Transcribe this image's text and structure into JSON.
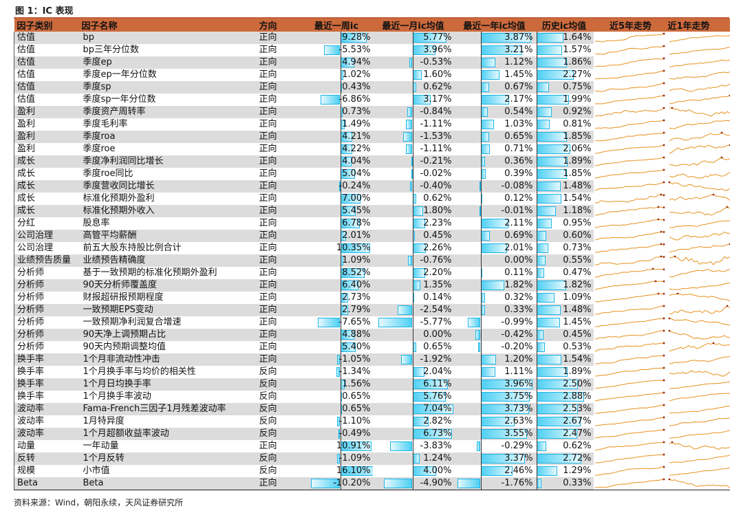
{
  "figure_title": "图 1：IC 表现",
  "source": "资料来源：Wind，朝阳永续，天风证券研究所",
  "chart_data": {
    "type": "table",
    "columns": [
      "因子类别",
      "因子名称",
      "方向",
      "最近一周ic",
      "最近一月ic均值",
      "最近一年ic均值",
      "历史ic均值",
      "近5年走势",
      "近1年走势"
    ],
    "rows": [
      {
        "category": "估值",
        "name": "bp",
        "direction": "正向",
        "ic_week": "9.28%",
        "ic_month": "5.77%",
        "ic_year": "3.87%",
        "ic_hist": "1.64%",
        "w": 9.28,
        "m": 5.77,
        "y": 3.87,
        "h": 1.64
      },
      {
        "category": "估值",
        "name": "bp三年分位数",
        "direction": "正向",
        "ic_week": "-5.53%",
        "ic_month": "3.96%",
        "ic_year": "3.21%",
        "ic_hist": "1.57%",
        "w": -5.53,
        "m": 3.96,
        "y": 3.21,
        "h": 1.57
      },
      {
        "category": "估值",
        "name": "季度ep",
        "direction": "正向",
        "ic_week": "4.94%",
        "ic_month": "-0.53%",
        "ic_year": "1.12%",
        "ic_hist": "1.86%",
        "w": 4.94,
        "m": -0.53,
        "y": 1.12,
        "h": 1.86
      },
      {
        "category": "估值",
        "name": "季度ep一年分位数",
        "direction": "正向",
        "ic_week": "1.02%",
        "ic_month": "1.60%",
        "ic_year": "1.45%",
        "ic_hist": "2.27%",
        "w": 1.02,
        "m": 1.6,
        "y": 1.45,
        "h": 2.27
      },
      {
        "category": "估值",
        "name": "季度sp",
        "direction": "正向",
        "ic_week": "0.43%",
        "ic_month": "0.62%",
        "ic_year": "0.67%",
        "ic_hist": "0.75%",
        "w": 0.43,
        "m": 0.62,
        "y": 0.67,
        "h": 0.75
      },
      {
        "category": "估值",
        "name": "季度sp一年分位数",
        "direction": "正向",
        "ic_week": "-6.86%",
        "ic_month": "3.17%",
        "ic_year": "2.17%",
        "ic_hist": "1.99%",
        "w": -6.86,
        "m": 3.17,
        "y": 2.17,
        "h": 1.99
      },
      {
        "category": "盈利",
        "name": "季度资产周转率",
        "direction": "正向",
        "ic_week": "0.73%",
        "ic_month": "-0.84%",
        "ic_year": "0.54%",
        "ic_hist": "0.92%",
        "w": 0.73,
        "m": -0.84,
        "y": 0.54,
        "h": 0.92
      },
      {
        "category": "盈利",
        "name": "季度毛利率",
        "direction": "正向",
        "ic_week": "1.49%",
        "ic_month": "-1.11%",
        "ic_year": "1.03%",
        "ic_hist": "0.81%",
        "w": 1.49,
        "m": -1.11,
        "y": 1.03,
        "h": 0.81
      },
      {
        "category": "盈利",
        "name": "季度roa",
        "direction": "正向",
        "ic_week": "4.21%",
        "ic_month": "-1.53%",
        "ic_year": "0.65%",
        "ic_hist": "1.85%",
        "w": 4.21,
        "m": -1.53,
        "y": 0.65,
        "h": 1.85
      },
      {
        "category": "盈利",
        "name": "季度roe",
        "direction": "正向",
        "ic_week": "4.22%",
        "ic_month": "-1.11%",
        "ic_year": "0.71%",
        "ic_hist": "2.06%",
        "w": 4.22,
        "m": -1.11,
        "y": 0.71,
        "h": 2.06
      },
      {
        "category": "成长",
        "name": "季度净利润同比增长",
        "direction": "正向",
        "ic_week": "4.04%",
        "ic_month": "-0.21%",
        "ic_year": "0.36%",
        "ic_hist": "1.89%",
        "w": 4.04,
        "m": -0.21,
        "y": 0.36,
        "h": 1.89
      },
      {
        "category": "成长",
        "name": "季度roe同比",
        "direction": "正向",
        "ic_week": "5.04%",
        "ic_month": "-0.02%",
        "ic_year": "0.39%",
        "ic_hist": "1.85%",
        "w": 5.04,
        "m": -0.02,
        "y": 0.39,
        "h": 1.85
      },
      {
        "category": "成长",
        "name": "季度营收同比增长",
        "direction": "正向",
        "ic_week": "-0.24%",
        "ic_month": "-0.40%",
        "ic_year": "-0.08%",
        "ic_hist": "1.48%",
        "w": -0.24,
        "m": -0.4,
        "y": -0.08,
        "h": 1.48
      },
      {
        "category": "成长",
        "name": "标准化预期外盈利",
        "direction": "正向",
        "ic_week": "7.00%",
        "ic_month": "0.62%",
        "ic_year": "0.12%",
        "ic_hist": "1.54%",
        "w": 7.0,
        "m": 0.62,
        "y": 0.12,
        "h": 1.54
      },
      {
        "category": "成长",
        "name": "标准化预期外收入",
        "direction": "正向",
        "ic_week": "5.45%",
        "ic_month": "1.80%",
        "ic_year": "-0.01%",
        "ic_hist": "1.18%",
        "w": 5.45,
        "m": 1.8,
        "y": -0.01,
        "h": 1.18
      },
      {
        "category": "分红",
        "name": "股息率",
        "direction": "正向",
        "ic_week": "6.78%",
        "ic_month": "2.23%",
        "ic_year": "2.11%",
        "ic_hist": "0.95%",
        "w": 6.78,
        "m": 2.23,
        "y": 2.11,
        "h": 0.95
      },
      {
        "category": "公司治理",
        "name": "高管平均薪酬",
        "direction": "正向",
        "ic_week": "2.01%",
        "ic_month": "0.45%",
        "ic_year": "0.69%",
        "ic_hist": "0.60%",
        "w": 2.01,
        "m": 0.45,
        "y": 0.69,
        "h": 0.6
      },
      {
        "category": "公司治理",
        "name": "前五大股东持股比例合计",
        "direction": "正向",
        "ic_week": "10.35%",
        "ic_month": "2.26%",
        "ic_year": "2.01%",
        "ic_hist": "0.73%",
        "w": 10.35,
        "m": 2.26,
        "y": 2.01,
        "h": 0.73
      },
      {
        "category": "业绩预告质量",
        "name": "业绩预告精确度",
        "direction": "正向",
        "ic_week": "1.09%",
        "ic_month": "-0.76%",
        "ic_year": "0.00%",
        "ic_hist": "0.55%",
        "w": 1.09,
        "m": -0.76,
        "y": 0.0,
        "h": 0.55
      },
      {
        "category": "分析师",
        "name": "基于一致预期的标准化预期外盈利",
        "direction": "正向",
        "ic_week": "8.52%",
        "ic_month": "2.20%",
        "ic_year": "0.11%",
        "ic_hist": "0.47%",
        "w": 8.52,
        "m": 2.2,
        "y": 0.11,
        "h": 0.47
      },
      {
        "category": "分析师",
        "name": "90天分析师覆盖度",
        "direction": "正向",
        "ic_week": "6.40%",
        "ic_month": "1.35%",
        "ic_year": "1.82%",
        "ic_hist": "1.82%",
        "w": 6.4,
        "m": 1.35,
        "y": 1.82,
        "h": 1.82
      },
      {
        "category": "分析师",
        "name": "财报超研报预期程度",
        "direction": "正向",
        "ic_week": "2.73%",
        "ic_month": "0.14%",
        "ic_year": "0.32%",
        "ic_hist": "1.09%",
        "w": 2.73,
        "m": 0.14,
        "y": 0.32,
        "h": 1.09
      },
      {
        "category": "分析师",
        "name": "一致预期EPS变动",
        "direction": "正向",
        "ic_week": "2.79%",
        "ic_month": "-2.54%",
        "ic_year": "0.33%",
        "ic_hist": "1.48%",
        "w": 2.79,
        "m": -2.54,
        "y": 0.33,
        "h": 1.48
      },
      {
        "category": "分析师",
        "name": "一致预期净利润复合增速",
        "direction": "正向",
        "ic_week": "-7.65%",
        "ic_month": "-5.77%",
        "ic_year": "-0.99%",
        "ic_hist": "1.45%",
        "w": -7.65,
        "m": -5.77,
        "y": -0.99,
        "h": 1.45
      },
      {
        "category": "分析师",
        "name": "90天净上调预期占比",
        "direction": "正向",
        "ic_week": "4.88%",
        "ic_month": "0.00%",
        "ic_year": "-0.42%",
        "ic_hist": "0.45%",
        "w": 4.88,
        "m": 0.0,
        "y": -0.42,
        "h": 0.45
      },
      {
        "category": "分析师",
        "name": "90天内预期调整均值",
        "direction": "正向",
        "ic_week": "5.40%",
        "ic_month": "0.65%",
        "ic_year": "-0.20%",
        "ic_hist": "0.53%",
        "w": 5.4,
        "m": 0.65,
        "y": -0.2,
        "h": 0.53
      },
      {
        "category": "换手率",
        "name": "1个月非流动性冲击",
        "direction": "正向",
        "ic_week": "-1.05%",
        "ic_month": "-1.92%",
        "ic_year": "1.20%",
        "ic_hist": "1.54%",
        "w": -1.05,
        "m": -1.92,
        "y": 1.2,
        "h": 1.54
      },
      {
        "category": "换手率",
        "name": "1个月换手率与均价的相关性",
        "direction": "反向",
        "ic_week": "-1.34%",
        "ic_month": "2.04%",
        "ic_year": "1.11%",
        "ic_hist": "1.89%",
        "w": -1.34,
        "m": 2.04,
        "y": 1.11,
        "h": 1.89
      },
      {
        "category": "换手率",
        "name": "1个月日均换手率",
        "direction": "反向",
        "ic_week": "1.56%",
        "ic_month": "6.11%",
        "ic_year": "3.96%",
        "ic_hist": "2.50%",
        "w": 1.56,
        "m": 6.11,
        "y": 3.96,
        "h": 2.5
      },
      {
        "category": "换手率",
        "name": "1个月换手率波动",
        "direction": "反向",
        "ic_week": "0.65%",
        "ic_month": "5.76%",
        "ic_year": "3.75%",
        "ic_hist": "2.88%",
        "w": 0.65,
        "m": 5.76,
        "y": 3.75,
        "h": 2.88
      },
      {
        "category": "波动率",
        "name": "Fama-French三因子1月残差波动率",
        "direction": "反向",
        "ic_week": "0.65%",
        "ic_month": "7.04%",
        "ic_year": "3.73%",
        "ic_hist": "2.53%",
        "w": 0.65,
        "m": 7.04,
        "y": 3.73,
        "h": 2.53
      },
      {
        "category": "波动率",
        "name": "1月特异度",
        "direction": "反向",
        "ic_week": "-1.10%",
        "ic_month": "2.82%",
        "ic_year": "2.63%",
        "ic_hist": "2.67%",
        "w": -1.1,
        "m": 2.82,
        "y": 2.63,
        "h": 2.67
      },
      {
        "category": "波动率",
        "name": "1个月超额收益率波动",
        "direction": "反向",
        "ic_week": "-0.49%",
        "ic_month": "6.73%",
        "ic_year": "3.55%",
        "ic_hist": "2.47%",
        "w": -0.49,
        "m": 6.73,
        "y": 3.55,
        "h": 2.47
      },
      {
        "category": "动量",
        "name": "一年动量",
        "direction": "正向",
        "ic_week": "10.91%",
        "ic_month": "-3.83%",
        "ic_year": "-0.29%",
        "ic_hist": "0.62%",
        "w": 10.91,
        "m": -3.83,
        "y": -0.29,
        "h": 0.62
      },
      {
        "category": "反转",
        "name": "1个月反转",
        "direction": "反向",
        "ic_week": "-1.09%",
        "ic_month": "1.24%",
        "ic_year": "3.37%",
        "ic_hist": "2.72%",
        "w": -1.09,
        "m": 1.24,
        "y": 3.37,
        "h": 2.72
      },
      {
        "category": "规模",
        "name": "小市值",
        "direction": "反向",
        "ic_week": "16.10%",
        "ic_month": "4.00%",
        "ic_year": "2.46%",
        "ic_hist": "1.29%",
        "w": 16.1,
        "m": 4.0,
        "y": 2.46,
        "h": 1.29
      },
      {
        "category": "Beta",
        "name": "Beta",
        "direction": "正向",
        "ic_week": "-10.20%",
        "ic_month": "-4.90%",
        "ic_year": "-1.76%",
        "ic_hist": "0.33%",
        "w": -10.2,
        "m": -4.9,
        "y": -1.76,
        "h": 0.33
      }
    ]
  },
  "colors": {
    "header": "#cd6a3c",
    "bar_fill": "#4fd0f3",
    "bar_border": "#1ab4e8",
    "spark_line": "#e8901c",
    "spark_marker": "#9a3412",
    "stripe": "#dcdcdc"
  }
}
